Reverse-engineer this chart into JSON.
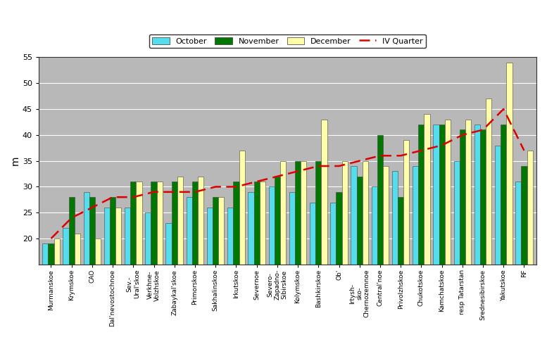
{
  "categories": [
    "Murmanskoe",
    "Krymskoe",
    "CAO",
    "Dal'nevostochnoe",
    "Sev.-\nUral'skoe",
    "Verkhnе-\nVolzhskoe",
    "Zabaykal'skoe",
    "Primorskoe",
    "Sakhalinskoe",
    "Irkutskoe",
    "Severnoe",
    "Severo-\nZapadno-\nSibirskoe",
    "Kolymskoe",
    "Bashkirskoe",
    "Ob'",
    "Irtysh-\nsko-\nChernozemnoe",
    "Central'noe",
    "Privolzhskoe",
    "Chukotskoe",
    "Kamchatskoe",
    "resp Tatarstan",
    "Srednesibirskoe",
    "Yakutskoe",
    "RF"
  ],
  "october": [
    19,
    22,
    29,
    26,
    26,
    25,
    23,
    28,
    26,
    26,
    29,
    30,
    29,
    27,
    27,
    34,
    30,
    33,
    34,
    42,
    35,
    42,
    38,
    31
  ],
  "november": [
    19,
    28,
    28,
    28,
    31,
    31,
    31,
    31,
    28,
    31,
    31,
    32,
    35,
    35,
    29,
    32,
    40,
    28,
    42,
    42,
    41,
    41,
    42,
    34
  ],
  "december": [
    20,
    21,
    20,
    26,
    31,
    31,
    32,
    32,
    28,
    37,
    31,
    35,
    35,
    43,
    35,
    35,
    34,
    39,
    44,
    43,
    43,
    47,
    54,
    37
  ],
  "iv_quarter": [
    20,
    24,
    26,
    28,
    28,
    29,
    29,
    29,
    30,
    30,
    31,
    32,
    33,
    34,
    34,
    35,
    36,
    36,
    37,
    38,
    40,
    41,
    45,
    37
  ],
  "oct_color": "#55ddee",
  "nov_color": "#007700",
  "dec_color": "#ffffaa",
  "line_color": "#dd0000",
  "plot_bg": "#b8b8b8",
  "fig_bg": "#ffffff",
  "ylabel": "m",
  "ylim_min": 15,
  "ylim_max": 55,
  "yticks": [
    20,
    25,
    30,
    35,
    40,
    45,
    50,
    55
  ],
  "legend_labels": [
    "October",
    "November",
    "December",
    "IV Quarter"
  ]
}
